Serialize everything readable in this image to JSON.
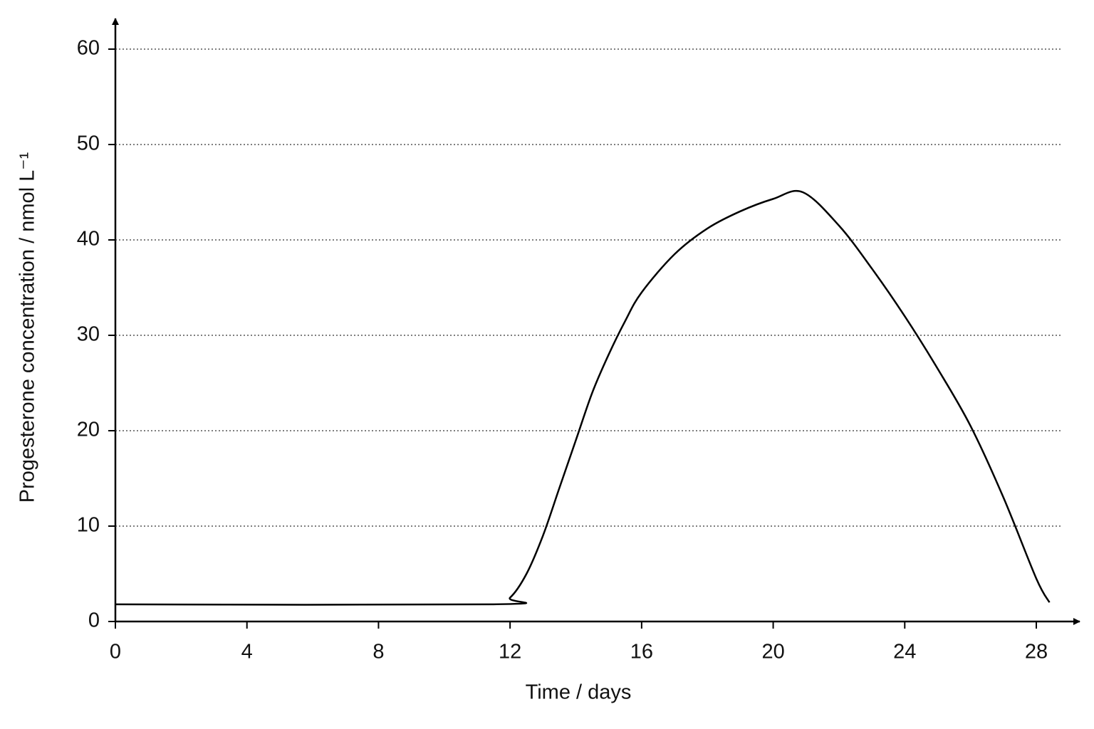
{
  "chart_data": {
    "type": "line",
    "x_label": "Time / days",
    "y_label": "Progesterone concentration / nmol L⁻¹",
    "x": [
      0,
      11.5,
      12,
      12.5,
      13,
      13.5,
      14,
      14.5,
      15,
      15.5,
      16,
      17,
      18,
      19,
      20,
      20.9,
      22,
      23,
      24,
      25,
      26,
      27,
      28,
      28.4
    ],
    "series": [
      {
        "color": "#000000",
        "values": [
          1.8,
          1.8,
          2.5,
          5,
          9,
          14,
          19,
          24,
          28,
          31.5,
          34.5,
          38.5,
          41.2,
          43,
          44.3,
          45,
          41.5,
          37,
          32,
          26.5,
          20.5,
          13,
          4.5,
          2
        ]
      }
    ],
    "xlim": [
      0,
      28
    ],
    "xticks": [
      0,
      4,
      8,
      12,
      16,
      20,
      24,
      28
    ],
    "ylim": [
      0,
      60
    ],
    "yticks": [
      0,
      10,
      20,
      30,
      40,
      50,
      60
    ],
    "grid": true
  }
}
